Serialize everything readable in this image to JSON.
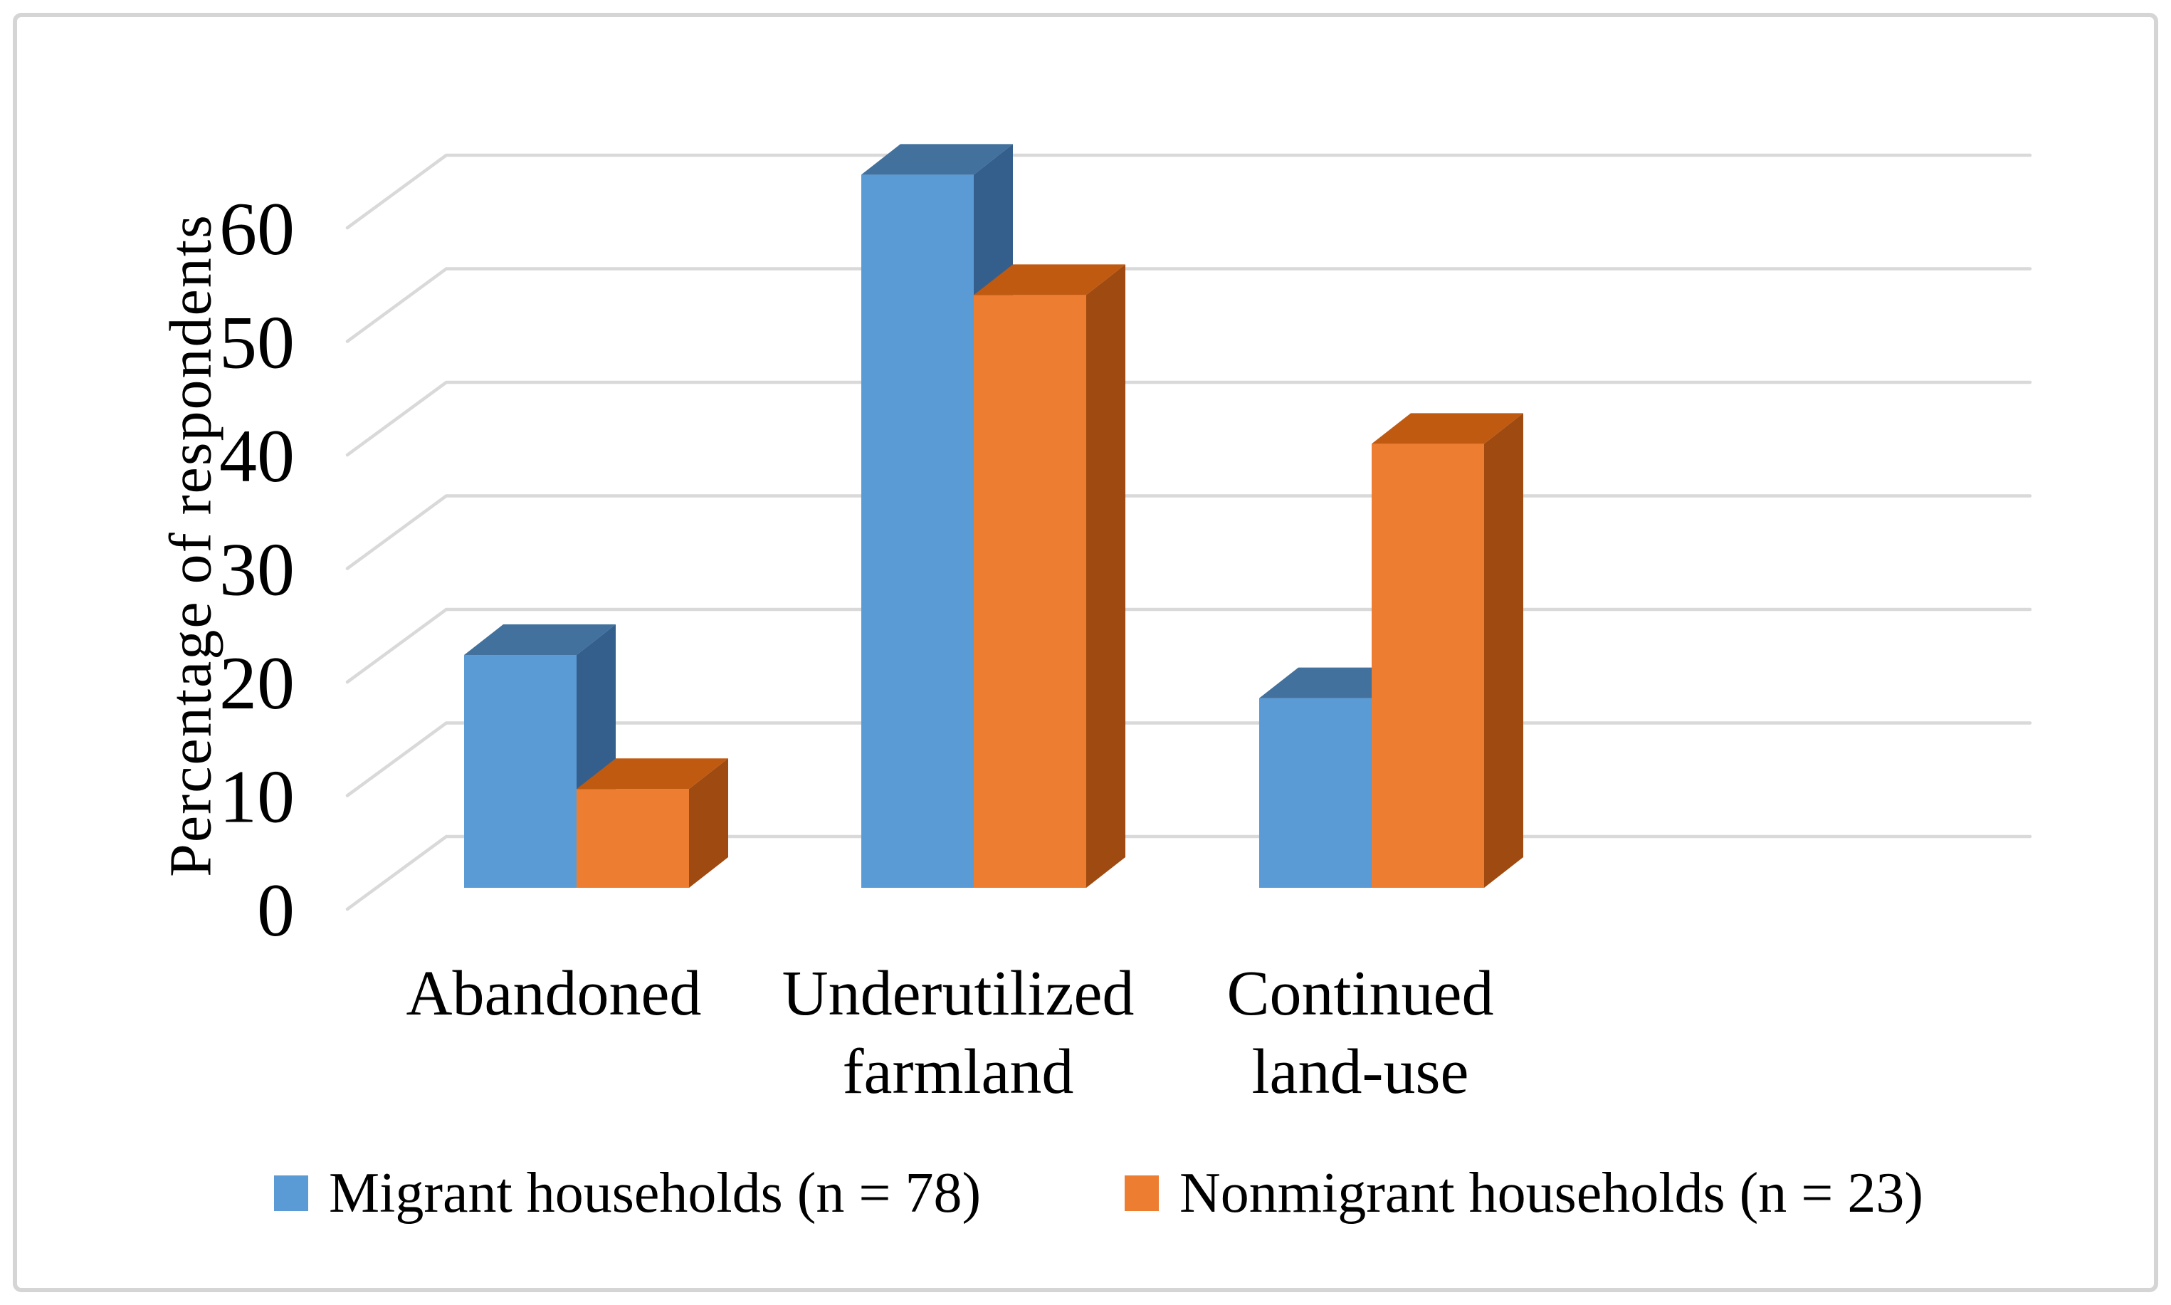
{
  "chart_data": {
    "type": "bar",
    "subtype": "3d-clustered-column",
    "title": "",
    "xlabel": "",
    "ylabel": "Percentage of respondents",
    "categories": [
      "Abandoned",
      "Underutilized farmland",
      "Continued land-use"
    ],
    "categories_display": [
      [
        "Abandoned"
      ],
      [
        "Underutilized",
        "farmland"
      ],
      [
        "Continued",
        "land-use"
      ]
    ],
    "series": [
      {
        "name": "Migrant households (n = 78)",
        "values": [
          20.5,
          62.8,
          16.7
        ]
      },
      {
        "name": "Nonmigrant households (n = 23)",
        "values": [
          8.7,
          52.2,
          39.1
        ]
      }
    ],
    "yticks": [
      0,
      10,
      20,
      30,
      40,
      50,
      60
    ],
    "ylim": [
      0,
      65
    ],
    "grid": true,
    "legend_position": "bottom"
  },
  "style": {
    "grid_color": "#d9d9d9",
    "border_color": "#d5d5d5",
    "text_color": "#000000",
    "bar_faces": [
      {
        "front": "#5B9BD5",
        "top": "#41719C",
        "side": "#345F8D"
      },
      {
        "front": "#ED7D31",
        "top": "#C05A11",
        "side": "#9E4A10"
      }
    ]
  }
}
